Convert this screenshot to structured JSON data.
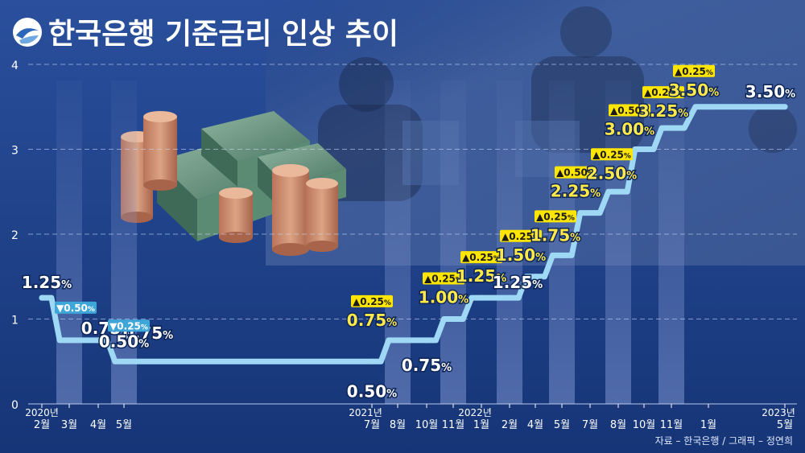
{
  "title": "한국은행 기준금리 인상 추이",
  "source": "자료 – 한국은행 / 그래픽 – 정연희",
  "colors": {
    "background": "#1d3f86",
    "line": "#9ed8f5",
    "value_white": "#ffffff",
    "value_yellow": "#ffe94a",
    "badge_up": "#ffe600",
    "badge_down": "#3fa6d9"
  },
  "chart_data": {
    "type": "line",
    "title": "한국은행 기준금리 인상 추이",
    "ylim": [
      0,
      4
    ],
    "yticks": [
      "0",
      "1",
      "2",
      "3",
      "4"
    ],
    "grid": true,
    "unit": "%",
    "year_labels": [
      {
        "text": "2020년",
        "at_index": 0
      },
      {
        "text": "2021년",
        "at_index": 4
      },
      {
        "text": "2022년",
        "at_index": 8
      },
      {
        "text": "2023년",
        "at_index": 17
      }
    ],
    "points": [
      {
        "date": "2020-02",
        "xlabel": "2월",
        "rate": 1.25,
        "label": "1.25%",
        "color": "white"
      },
      {
        "date": "2020-03",
        "xlabel": "3월",
        "rate": 0.75,
        "label": "0.75%",
        "color": "white",
        "change": "▼0.50"
      },
      {
        "date": "2020-04",
        "xlabel": "4월",
        "rate": 0.75,
        "label": "0.75%",
        "color": "white"
      },
      {
        "date": "2020-05",
        "xlabel": "5월",
        "rate": 0.5,
        "label": "0.50%",
        "color": "white",
        "change": "▼0.25"
      },
      {
        "date": "2021-07",
        "xlabel": "7월",
        "rate": 0.5,
        "label": "0.50%",
        "color": "white"
      },
      {
        "date": "2021-08",
        "xlabel": "8월",
        "rate": 0.75,
        "label": "0.75%",
        "color": "yellow",
        "change": "▲0.25"
      },
      {
        "date": "2021-10",
        "xlabel": "10월",
        "rate": 0.75,
        "label": "0.75%",
        "color": "white"
      },
      {
        "date": "2021-11",
        "xlabel": "11월",
        "rate": 1.0,
        "label": "1.00%",
        "color": "yellow",
        "change": "▲0.25"
      },
      {
        "date": "2022-01",
        "xlabel": "1월",
        "rate": 1.25,
        "label": "1.25%",
        "color": "yellow",
        "change": "▲0.25"
      },
      {
        "date": "2022-02",
        "xlabel": "2월",
        "rate": 1.25,
        "label": "1.25%",
        "color": "white"
      },
      {
        "date": "2022-04",
        "xlabel": "4월",
        "rate": 1.5,
        "label": "1.50%",
        "color": "yellow",
        "change": "▲0.25"
      },
      {
        "date": "2022-05",
        "xlabel": "5월",
        "rate": 1.75,
        "label": "1.75%",
        "color": "yellow",
        "change": "▲0.25"
      },
      {
        "date": "2022-07",
        "xlabel": "7월",
        "rate": 2.25,
        "label": "2.25%",
        "color": "yellow",
        "change": "▲0.50"
      },
      {
        "date": "2022-08",
        "xlabel": "8월",
        "rate": 2.5,
        "label": "2.50%",
        "color": "yellow",
        "change": "▲0.25"
      },
      {
        "date": "2022-10",
        "xlabel": "10월",
        "rate": 3.0,
        "label": "3.00%",
        "color": "yellow",
        "change": "▲0.50"
      },
      {
        "date": "2022-11",
        "xlabel": "11월",
        "rate": 3.25,
        "label": "3.25%",
        "color": "yellow",
        "change": "▲0.25"
      },
      {
        "date": "2023-01",
        "xlabel": "1월",
        "rate": 3.5,
        "label": "3.50%",
        "color": "yellow",
        "change": "▲0.25"
      },
      {
        "date": "2023-05",
        "xlabel": "5월",
        "rate": 3.5,
        "label": "3.50%",
        "color": "white"
      }
    ]
  }
}
